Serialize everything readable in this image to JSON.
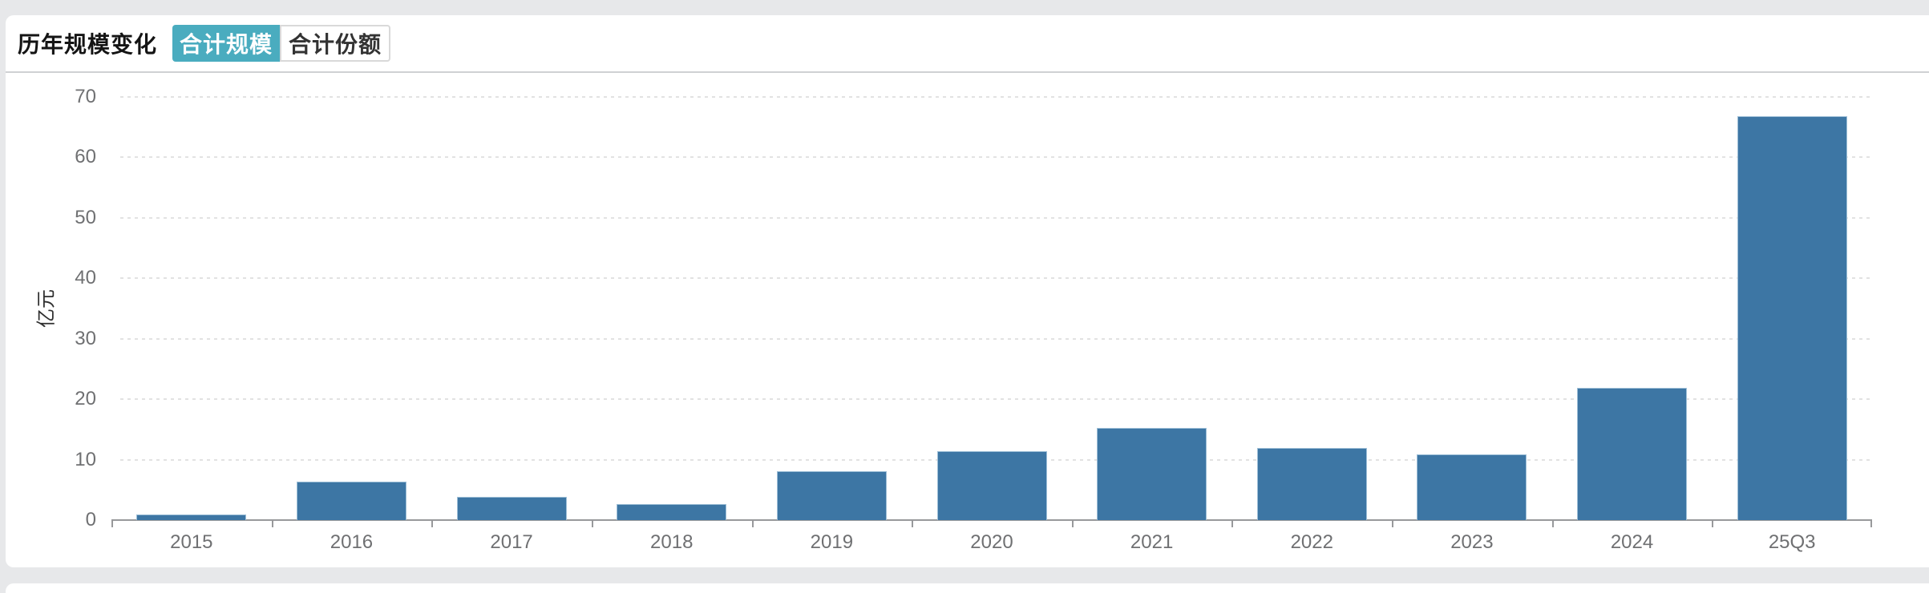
{
  "header": {
    "title": "历年规模变化",
    "tabs": [
      {
        "id": "total-scale",
        "label": "合计规模",
        "active": true
      },
      {
        "id": "total-share",
        "label": "合计份额",
        "active": false
      }
    ]
  },
  "chart_data": {
    "type": "bar",
    "title": "历年规模变化",
    "categories": [
      "2015",
      "2016",
      "2017",
      "2018",
      "2019",
      "2020",
      "2021",
      "2022",
      "2023",
      "2024",
      "25Q3"
    ],
    "values": [
      0.9,
      6.4,
      3.8,
      2.6,
      8.1,
      11.4,
      15.3,
      11.9,
      10.9,
      21.9,
      66.8
    ],
    "xlabel": "",
    "ylabel": "亿元",
    "ylim": [
      0,
      70
    ],
    "yticks": [
      0,
      10,
      20,
      30,
      40,
      50,
      60,
      70
    ],
    "grid": "horizontal-dotted",
    "legend": "none",
    "bar_color": "#3d76a4"
  },
  "colors": {
    "page_bg": "#e7e8ea",
    "card_bg": "#ffffff",
    "accent_teal": "#4aacbf",
    "bar_blue": "#3d76a4",
    "bar_border": "#9ebfd7",
    "axis_line": "#98999b",
    "tick_label": "#6f7072",
    "gridline": "#e2e2e2",
    "divider": "#cfd1d3"
  }
}
